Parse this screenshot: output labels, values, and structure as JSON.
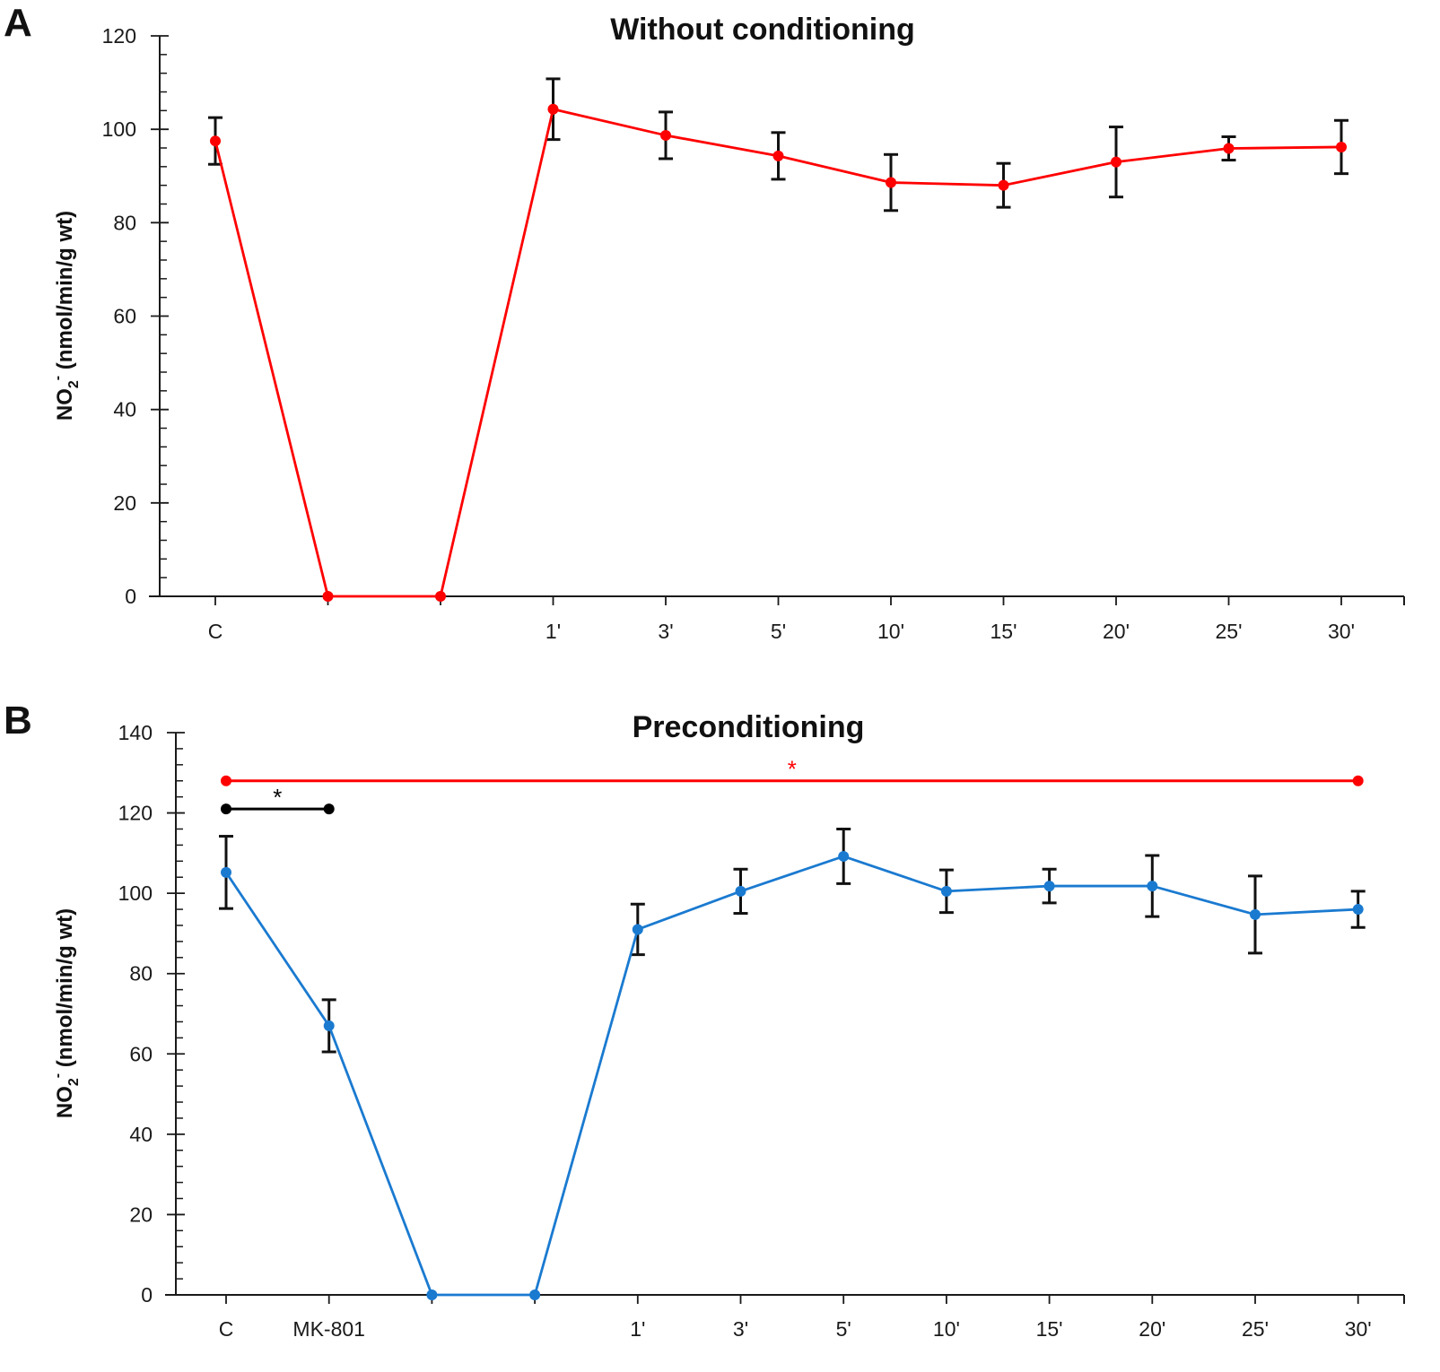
{
  "chart_data": [
    {
      "panel": "A",
      "type": "line",
      "title": "Without conditioning",
      "xlabel": "",
      "ylabel": "NO2- (nmol/min/g wt)",
      "ylabel_parts": {
        "main": "NO",
        "sub": "2",
        "sup": "-",
        "rest": " (nmol/min/g wt)"
      },
      "ylim": [
        0,
        120
      ],
      "yticks": [
        0,
        20,
        40,
        60,
        80,
        100,
        120
      ],
      "y_minor_step": 4,
      "categories": [
        "C",
        "",
        "",
        "1'",
        "3'",
        "5'",
        "10'",
        "15'",
        "20'",
        "25'",
        "30'"
      ],
      "grid": false,
      "legend": "none",
      "series": [
        {
          "name": "Without conditioning",
          "color": "#ff0000",
          "values": [
            97.5,
            0,
            0,
            104.3,
            98.7,
            94.3,
            88.6,
            88.0,
            93.0,
            95.9,
            96.2
          ],
          "errors": [
            5.0,
            null,
            null,
            6.5,
            5.0,
            5.0,
            6.0,
            4.7,
            7.5,
            2.5,
            5.7
          ]
        }
      ],
      "annotations": []
    },
    {
      "panel": "B",
      "type": "line",
      "title": "Preconditioning",
      "xlabel": "",
      "ylabel": "NO2- (nmol/min/g wt)",
      "ylabel_parts": {
        "main": "NO",
        "sub": "2",
        "sup": "-",
        "rest": " (nmol/min/g wt)"
      },
      "ylim": [
        0,
        140
      ],
      "yticks": [
        0,
        20,
        40,
        60,
        80,
        100,
        120,
        140
      ],
      "y_minor_step": 4,
      "categories": [
        "C",
        "MK-801",
        "",
        "",
        "1'",
        "3'",
        "5'",
        "10'",
        "15'",
        "20'",
        "25'",
        "30'"
      ],
      "grid": false,
      "legend": "none",
      "series": [
        {
          "name": "Preconditioning",
          "color": "#1a7ad0",
          "values": [
            105.2,
            67.0,
            0,
            0,
            91.0,
            100.5,
            109.2,
            100.5,
            101.8,
            101.8,
            94.7,
            96.0
          ],
          "errors": [
            9.0,
            6.5,
            null,
            null,
            6.3,
            5.5,
            6.8,
            5.3,
            4.2,
            7.6,
            9.6,
            4.5
          ]
        }
      ],
      "annotations": [
        {
          "type": "significance-bar",
          "from": "C",
          "to": "30'",
          "y": 128,
          "label": "*",
          "color": "#ff0000"
        },
        {
          "type": "significance-bar",
          "from": "C",
          "to": "MK-801",
          "y": 121,
          "label": "*",
          "color": "#000000"
        }
      ]
    }
  ],
  "panels": {
    "A": {
      "letter": "A"
    },
    "B": {
      "letter": "B"
    }
  },
  "colors": {
    "axis": "#1a1a1a",
    "error_bar": "#111111"
  }
}
